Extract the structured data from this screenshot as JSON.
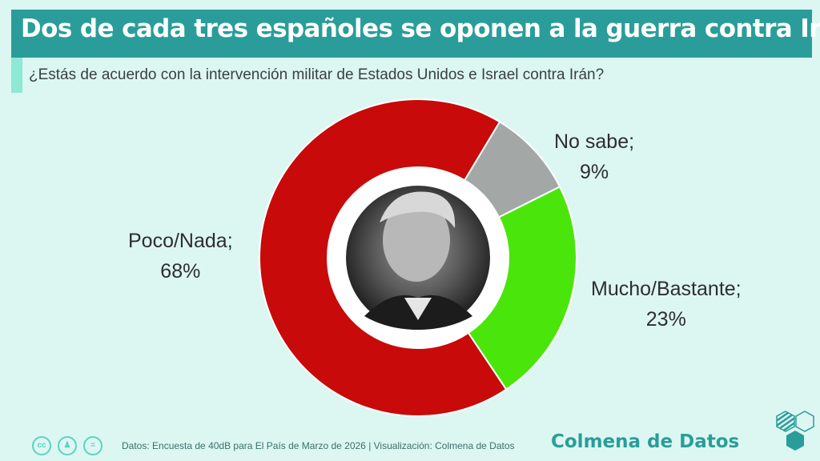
{
  "header": {
    "title": "Dos de cada tres españoles se oponen a la guerra contra Irán",
    "subtitle": "¿Estás de acuerdo con la intervención militar de Estados Unidos e Israel contra Irán?"
  },
  "chart_data": {
    "type": "pie",
    "variant": "donut",
    "title": "Dos de cada tres españoles se oponen a la guerra contra Irán",
    "subtitle": "¿Estás de acuerdo con la intervención militar de Estados Unidos e Israel contra Irán?",
    "start_angle_deg": 31,
    "slices": [
      {
        "label": "No sabe",
        "value": 9,
        "display": "9%",
        "color": "#a3a8a6"
      },
      {
        "label": "Mucho/Bastante",
        "value": 23,
        "display": "23%",
        "color": "#4ae60b"
      },
      {
        "label": "Poco/Nada",
        "value": 68,
        "display": "68%",
        "color": "#c80a0a"
      }
    ],
    "center_image": "portrait-photo"
  },
  "footer": {
    "license_icons": [
      "cc-icon",
      "attribution-icon",
      "no-derivatives-icon"
    ],
    "source": "Datos: Encuesta de 40dB para El País de Marzo de 2026 | Visualización: Colmena de Datos",
    "brand": "Colmena de Datos"
  },
  "colors": {
    "accent": "#2a9d9a",
    "background": "#dcf7f2",
    "sub_accent": "#8de8d4"
  }
}
